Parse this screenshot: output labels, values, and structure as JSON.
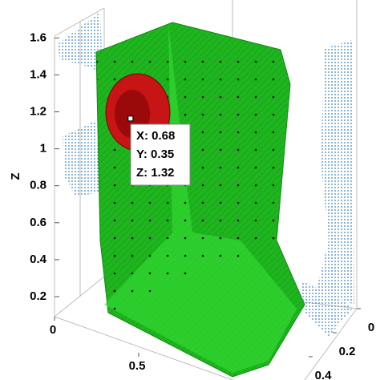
{
  "chart_data": {
    "type": "isosurface3d",
    "zlabel": "Z",
    "zlim": [
      0.15,
      1.65
    ],
    "zticks": [
      0.2,
      0.4,
      0.6,
      0.8,
      1,
      1.2,
      1.4,
      1.6
    ],
    "xticks": [
      0,
      0.5
    ],
    "yticks": [
      0,
      0.2,
      0.4
    ],
    "surface_color": "#1fb51f",
    "highlight_color": "#d81818",
    "datatip": [
      {
        "value": 0.68,
        "label": "X: 0.68"
      },
      {
        "value": 0.35,
        "label": "Y: 0.35"
      },
      {
        "value": 1.32,
        "label": "Z: 1.32"
      }
    ]
  }
}
